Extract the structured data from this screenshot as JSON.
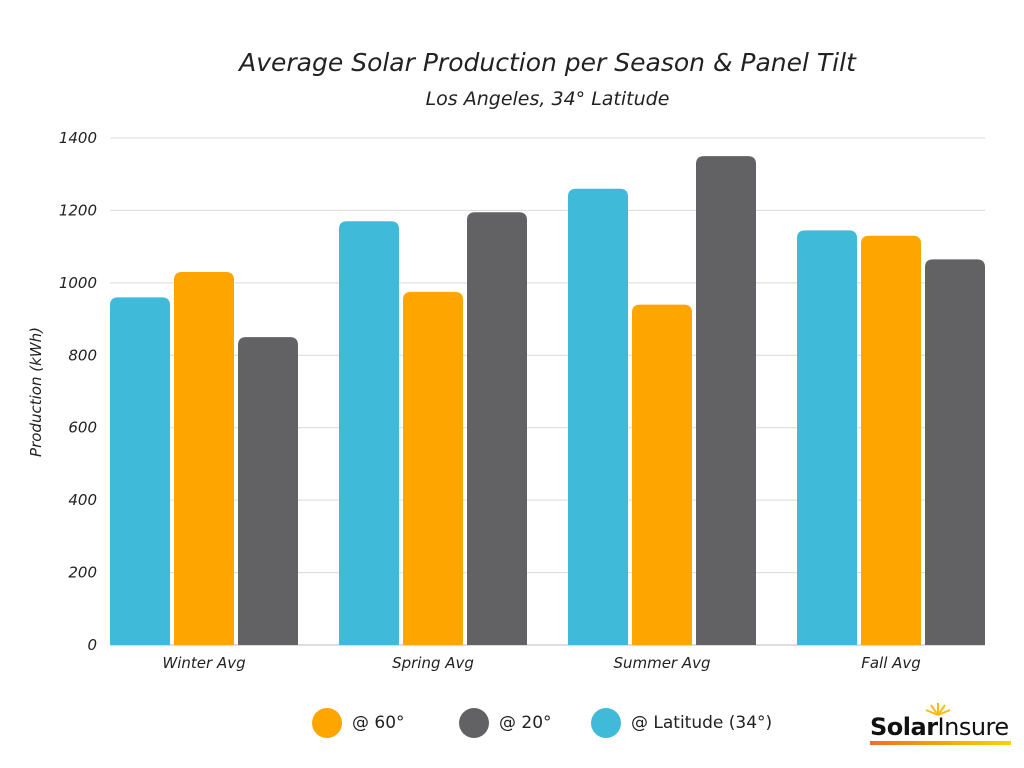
{
  "chart_data": {
    "type": "bar",
    "title": "Average Solar Production per Season & Panel Tilt",
    "subtitle": "Los Angeles, 34° Latitude",
    "ylabel": "Production (kWh)",
    "xlabel": "",
    "ylim": [
      0,
      1400
    ],
    "yticks": [
      0,
      200,
      400,
      600,
      800,
      1000,
      1200,
      1400
    ],
    "grid": true,
    "legend_placement": "bottom",
    "categories": [
      "Winter Avg",
      "Spring Avg",
      "Summer Avg",
      "Fall Avg"
    ],
    "series": [
      {
        "name": "@ Latitude (34°)",
        "color": "#3fbbd9",
        "values": [
          960,
          1170,
          1260,
          1145
        ]
      },
      {
        "name": "@ 60°",
        "color": "#fea500",
        "values": [
          1030,
          975,
          940,
          1130
        ]
      },
      {
        "name": "@ 20°",
        "color": "#626264",
        "values": [
          850,
          1195,
          1350,
          1065
        ]
      }
    ],
    "legend_order": [
      1,
      2,
      0
    ]
  },
  "logo": {
    "text": "SolarInsure"
  }
}
